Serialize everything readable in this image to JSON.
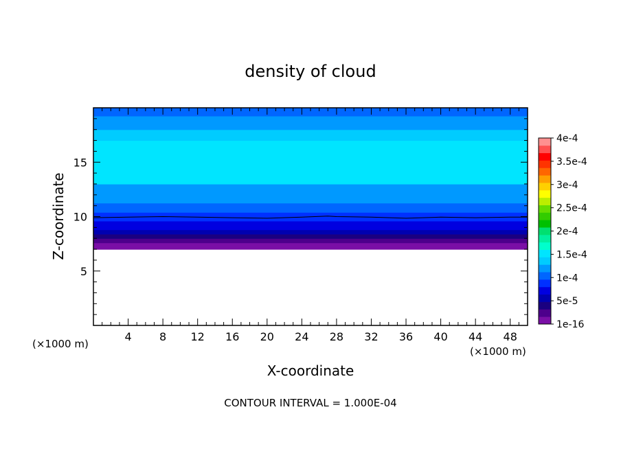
{
  "chart_data": {
    "type": "heatmap",
    "title": "density of cloud",
    "xlabel": "X-coordinate",
    "ylabel": "Z-coordinate",
    "x_unit": "(×1000 m)",
    "z_unit": "(×1000 m)",
    "xlim": [
      0,
      50
    ],
    "ylim": [
      0,
      20
    ],
    "x_ticks": [
      4,
      8,
      12,
      16,
      20,
      24,
      28,
      32,
      36,
      40,
      44,
      48
    ],
    "y_ticks": [
      5,
      10,
      15
    ],
    "footer": "CONTOUR INTERVAL = 1.000E-04",
    "colorbar": {
      "labels": [
        "1e-16",
        "5e-5",
        "1e-4",
        "1.5e-4",
        "2e-4",
        "2.5e-4",
        "3e-4",
        "3.5e-4",
        "4e-4"
      ],
      "label_values": [
        0,
        5e-05,
        0.0001,
        0.00015,
        0.0002,
        0.00025,
        0.0003,
        0.00035,
        0.0004
      ],
      "colors": [
        "#7a0fa6",
        "#4d008c",
        "#1a0080",
        "#0000b0",
        "#0000e0",
        "#0030ff",
        "#0066ff",
        "#0099ff",
        "#00ccff",
        "#00e5ff",
        "#00ffcc",
        "#00f0a0",
        "#00e070",
        "#00c000",
        "#33cc00",
        "#66dd00",
        "#bbee00",
        "#ffff00",
        "#ffd000",
        "#ffa000",
        "#ff6600",
        "#ff3300",
        "#ff0000",
        "#ff5050",
        "#ff9090"
      ]
    },
    "vertical_profile": [
      {
        "z": 7.0,
        "value": 5e-06
      },
      {
        "z": 7.4,
        "value": 1.5e-05
      },
      {
        "z": 7.8,
        "value": 3e-05
      },
      {
        "z": 8.2,
        "value": 4.5e-05
      },
      {
        "z": 8.6,
        "value": 6e-05
      },
      {
        "z": 9.0,
        "value": 7e-05
      },
      {
        "z": 9.4,
        "value": 7.8e-05
      },
      {
        "z": 9.8,
        "value": 8.5e-05
      },
      {
        "z": 10.2,
        "value": 9.2e-05
      },
      {
        "z": 10.6,
        "value": 9.8e-05
      },
      {
        "z": 11.0,
        "value": 0.000105
      },
      {
        "z": 11.5,
        "value": 0.000115
      },
      {
        "z": 12.5,
        "value": 0.000125
      },
      {
        "z": 13.5,
        "value": 0.000145
      },
      {
        "z": 16.5,
        "value": 0.000155
      },
      {
        "z": 17.5,
        "value": 0.00014
      },
      {
        "z": 18.5,
        "value": 0.00012
      },
      {
        "z": 20.0,
        "value": 0.00011
      }
    ],
    "cloud_base_z": 7.0,
    "contour_level": 0.0001,
    "contour_line": [
      {
        "x": 0,
        "z": 9.9
      },
      {
        "x": 4,
        "z": 9.95
      },
      {
        "x": 8,
        "z": 10.0
      },
      {
        "x": 12,
        "z": 9.95
      },
      {
        "x": 16,
        "z": 9.9
      },
      {
        "x": 20,
        "z": 9.85
      },
      {
        "x": 24,
        "z": 9.95
      },
      {
        "x": 27,
        "z": 10.05
      },
      {
        "x": 28,
        "z": 10.0
      },
      {
        "x": 32,
        "z": 9.95
      },
      {
        "x": 36,
        "z": 9.85
      },
      {
        "x": 40,
        "z": 9.95
      },
      {
        "x": 44,
        "z": 9.9
      },
      {
        "x": 48,
        "z": 9.95
      },
      {
        "x": 50,
        "z": 9.95
      }
    ]
  }
}
